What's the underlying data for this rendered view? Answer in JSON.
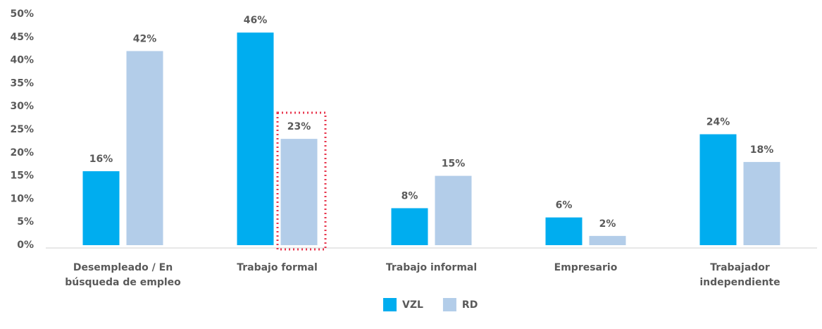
{
  "chart_data": {
    "type": "bar",
    "categories": [
      "Desempleado / En búsqueda de empleo",
      "Trabajo formal",
      "Trabajo informal",
      "Empresario",
      "Trabajador independiente"
    ],
    "series": [
      {
        "name": "VZL",
        "color": "#00adef",
        "values": [
          16,
          46,
          8,
          6,
          24
        ],
        "value_labels": [
          "16%",
          "46%",
          "8%",
          "6%",
          "24%"
        ]
      },
      {
        "name": "RD",
        "color": "#b3cde9",
        "values": [
          42,
          23,
          15,
          2,
          18
        ],
        "value_labels": [
          "42%",
          "23%",
          "15%",
          "2%",
          "18%"
        ]
      }
    ],
    "ylim": [
      0,
      50
    ],
    "yticks": [
      {
        "value": 0,
        "label": "0%"
      },
      {
        "value": 5,
        "label": "5%"
      },
      {
        "value": 10,
        "label": "10%"
      },
      {
        "value": 15,
        "label": "15%"
      },
      {
        "value": 20,
        "label": "20%"
      },
      {
        "value": 25,
        "label": "25%"
      },
      {
        "value": 30,
        "label": "30%"
      },
      {
        "value": 35,
        "label": "35%"
      },
      {
        "value": 40,
        "label": "40%"
      },
      {
        "value": 45,
        "label": "45%"
      },
      {
        "value": 50,
        "label": "50%"
      }
    ],
    "grid": false,
    "legend": "bottom"
  }
}
